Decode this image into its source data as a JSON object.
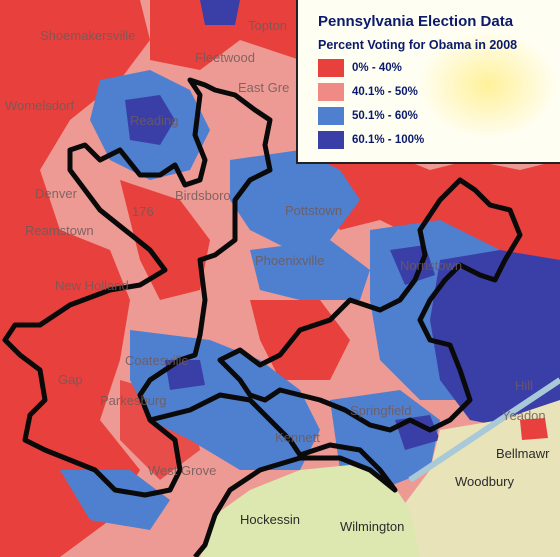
{
  "legend": {
    "title": "Pennsylvania Election Data",
    "subtitle": "Percent Voting for Obama in 2008",
    "items": [
      {
        "label": "0% - 40%",
        "color": "#e8403c"
      },
      {
        "label": "40.1% - 50%",
        "color": "#f08a84"
      },
      {
        "label": "50.1% - 60%",
        "color": "#4f7fcf"
      },
      {
        "label": "60.1% - 100%",
        "color": "#3a3fa8"
      }
    ]
  },
  "places": [
    {
      "label": "Shoemakersville"
    },
    {
      "label": "Topton"
    },
    {
      "label": "Fleetwood"
    },
    {
      "label": "East Gre"
    },
    {
      "label": "Womelsdorf"
    },
    {
      "label": "Reading"
    },
    {
      "label": "Birdsboro"
    },
    {
      "label": "Denver"
    },
    {
      "label": "Reamstown"
    },
    {
      "label": "176"
    },
    {
      "label": "Pottstown"
    },
    {
      "label": "Norristown"
    },
    {
      "label": "Phoenixville"
    },
    {
      "label": "New Holland"
    },
    {
      "label": "Coatesville"
    },
    {
      "label": "Gap"
    },
    {
      "label": "Parkesburg"
    },
    {
      "label": "Springfield"
    },
    {
      "label": "Hill"
    },
    {
      "label": "Yeadon"
    },
    {
      "label": "Kennett"
    },
    {
      "label": "West Grove"
    },
    {
      "label": "Bellmawr"
    },
    {
      "label": "Woodbury"
    },
    {
      "label": "Hockessin"
    },
    {
      "label": "Wilmington"
    }
  ]
}
